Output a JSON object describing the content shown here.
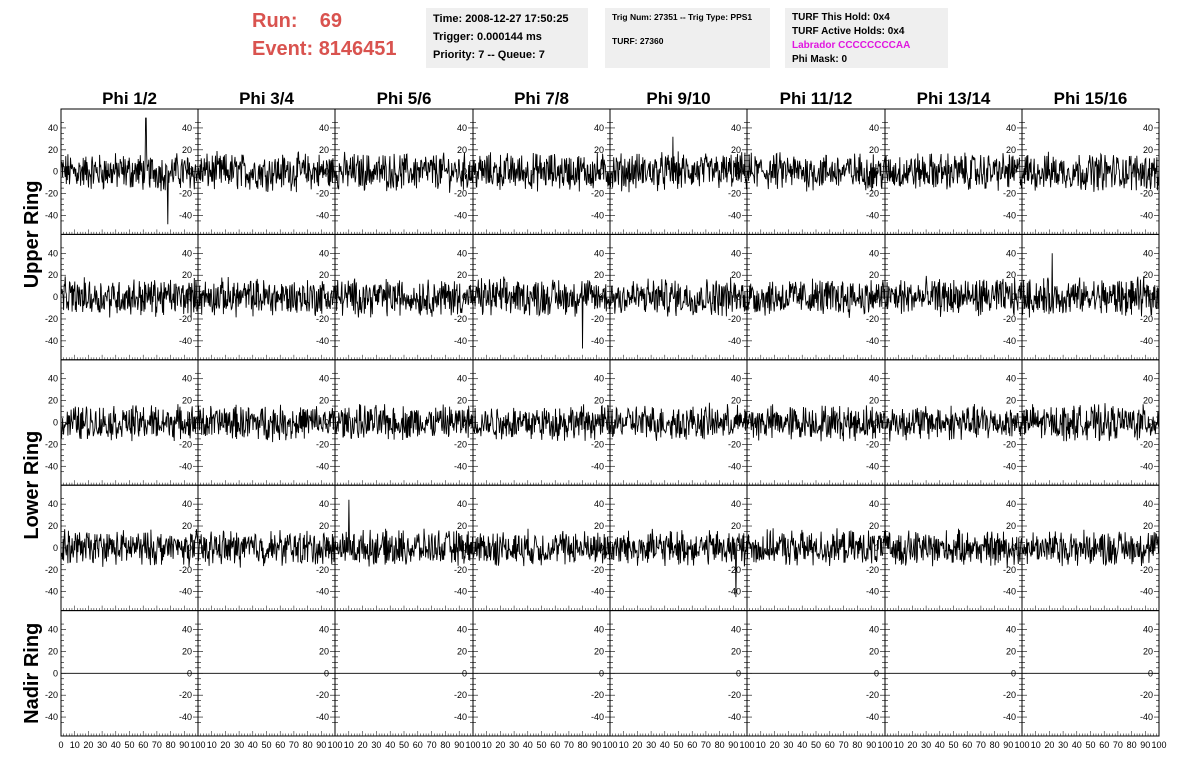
{
  "header": {
    "run_label": "Run:",
    "run_value": "69",
    "event_label": "Event:",
    "event_value": "8146451",
    "time_line": "Time: 2008-12-27 17:50:25",
    "trigger_line": "Trigger: 0.000144 ms",
    "priority_line": "Priority: 7 -- Queue: 7",
    "trig_num_line": "Trig Num: 27351 -- Trig Type: PPS1",
    "turf_line": "TURF: 27360",
    "turf_hold_line": "TURF This Hold: 0x4",
    "turf_active_line": "TURF Active Holds: 0x4",
    "labrador_line": "Labrador CCCCCCCCAA",
    "phi_mask_line": "Phi Mask: 0"
  },
  "colors": {
    "run_text": "#d9534f",
    "labrador_text": "#e016e0",
    "info_background": "#efefef",
    "trace": "#000000"
  },
  "chart_data": {
    "type": "line",
    "layout": "grid of 5 rows x 8 columns of waveform panels",
    "column_labels": [
      "Phi 1/2",
      "Phi 3/4",
      "Phi 5/6",
      "Phi 7/8",
      "Phi 9/10",
      "Phi 11/12",
      "Phi 13/14",
      "Phi 15/16"
    ],
    "row_labels": [
      "Upper Ring",
      "Lower Ring",
      "Nadir Ring"
    ],
    "row_label_spans": [
      {
        "label": "Upper Ring",
        "rows": [
          0,
          1
        ]
      },
      {
        "label": "Lower Ring",
        "rows": [
          2,
          3
        ]
      },
      {
        "label": "Nadir Ring",
        "rows": [
          4
        ]
      }
    ],
    "ylim": [
      -50,
      50
    ],
    "xlim": [
      0,
      100
    ],
    "y_ticks": [
      40,
      20,
      0,
      -20,
      -40
    ],
    "y_tick_labels": [
      "40",
      "20",
      "0",
      "-20",
      "-40"
    ],
    "x_tick_labels": [
      "0",
      "10",
      "20",
      "30",
      "40",
      "50",
      "60",
      "70",
      "80",
      "90",
      "100"
    ],
    "rows": [
      {
        "flat": false,
        "typical_amplitude": 14
      },
      {
        "flat": false,
        "typical_amplitude": 14
      },
      {
        "flat": false,
        "typical_amplitude": 13
      },
      {
        "flat": false,
        "typical_amplitude": 13
      },
      {
        "flat": true,
        "value": 0
      }
    ],
    "samples_per_trace": 260,
    "notable_peaks": [
      {
        "row": 0,
        "col": 0,
        "x": 62,
        "y": 52
      },
      {
        "row": 0,
        "col": 0,
        "x": 78,
        "y": -48
      },
      {
        "row": 0,
        "col": 4,
        "x": 46,
        "y": 32
      },
      {
        "row": 1,
        "col": 3,
        "x": 80,
        "y": -47
      },
      {
        "row": 1,
        "col": 7,
        "x": 22,
        "y": 40
      },
      {
        "row": 3,
        "col": 2,
        "x": 10,
        "y": 44
      },
      {
        "row": 3,
        "col": 4,
        "x": 92,
        "y": -45
      }
    ]
  }
}
